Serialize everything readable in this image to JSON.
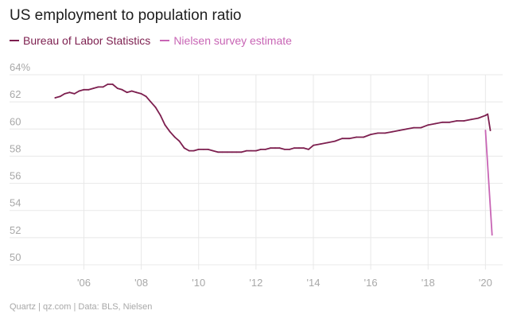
{
  "title": "US employment to population ratio",
  "footer": "Quartz | qz.com | Data: BLS, Nielsen",
  "colors": {
    "bls": "#7d1f4f",
    "nielsen": "#c865b5",
    "grid": "#e8e8e8",
    "tick": "#a8a8a8"
  },
  "chart_data": {
    "type": "line",
    "title": "US employment to population ratio",
    "xlabel": "",
    "ylabel": "",
    "xlim": [
      2004.6,
      2020.6
    ],
    "ylim": [
      50,
      64
    ],
    "grid": true,
    "legend_position": "top-left",
    "y_ticks": [
      {
        "value": 64,
        "label": "64%"
      },
      {
        "value": 62,
        "label": "62"
      },
      {
        "value": 60,
        "label": "60"
      },
      {
        "value": 58,
        "label": "58"
      },
      {
        "value": 56,
        "label": "56"
      },
      {
        "value": 54,
        "label": "54"
      },
      {
        "value": 52,
        "label": "52"
      },
      {
        "value": 50,
        "label": "50"
      }
    ],
    "x_ticks": [
      {
        "value": 2006,
        "label": "'06"
      },
      {
        "value": 2008,
        "label": "'08"
      },
      {
        "value": 2010,
        "label": "'10"
      },
      {
        "value": 2012,
        "label": "'12"
      },
      {
        "value": 2014,
        "label": "'14"
      },
      {
        "value": 2016,
        "label": "'16"
      },
      {
        "value": 2018,
        "label": "'18"
      },
      {
        "value": 2020,
        "label": "'20"
      }
    ],
    "series": [
      {
        "name": "Bureau of Labor Statistics",
        "color": "#7d1f4f",
        "x": [
          2005.0,
          2005.17,
          2005.33,
          2005.5,
          2005.67,
          2005.83,
          2006.0,
          2006.17,
          2006.33,
          2006.5,
          2006.67,
          2006.83,
          2007.0,
          2007.17,
          2007.33,
          2007.5,
          2007.67,
          2007.83,
          2008.0,
          2008.17,
          2008.33,
          2008.5,
          2008.67,
          2008.83,
          2009.0,
          2009.17,
          2009.33,
          2009.5,
          2009.67,
          2009.83,
          2010.0,
          2010.17,
          2010.33,
          2010.5,
          2010.67,
          2010.83,
          2011.0,
          2011.17,
          2011.33,
          2011.5,
          2011.67,
          2011.83,
          2012.0,
          2012.17,
          2012.33,
          2012.5,
          2012.67,
          2012.83,
          2013.0,
          2013.17,
          2013.33,
          2013.5,
          2013.67,
          2013.83,
          2014.0,
          2014.25,
          2014.5,
          2014.75,
          2015.0,
          2015.25,
          2015.5,
          2015.75,
          2016.0,
          2016.25,
          2016.5,
          2016.75,
          2017.0,
          2017.25,
          2017.5,
          2017.75,
          2018.0,
          2018.25,
          2018.5,
          2018.75,
          2019.0,
          2019.25,
          2019.5,
          2019.75,
          2020.0,
          2020.08,
          2020.17
        ],
        "values": [
          62.3,
          62.4,
          62.6,
          62.7,
          62.6,
          62.8,
          62.9,
          62.9,
          63.0,
          63.1,
          63.1,
          63.3,
          63.3,
          63.0,
          62.9,
          62.7,
          62.8,
          62.7,
          62.6,
          62.4,
          62.0,
          61.6,
          61.0,
          60.3,
          59.8,
          59.4,
          59.1,
          58.6,
          58.4,
          58.4,
          58.5,
          58.5,
          58.5,
          58.4,
          58.3,
          58.3,
          58.3,
          58.3,
          58.3,
          58.3,
          58.4,
          58.4,
          58.4,
          58.5,
          58.5,
          58.6,
          58.6,
          58.6,
          58.5,
          58.5,
          58.6,
          58.6,
          58.6,
          58.5,
          58.8,
          58.9,
          59.0,
          59.1,
          59.3,
          59.3,
          59.4,
          59.4,
          59.6,
          59.7,
          59.7,
          59.8,
          59.9,
          60.0,
          60.1,
          60.1,
          60.3,
          60.4,
          60.5,
          60.5,
          60.6,
          60.6,
          60.7,
          60.8,
          61.0,
          61.1,
          59.9
        ]
      },
      {
        "name": "Nielsen survey estimate",
        "color": "#c865b5",
        "x": [
          2020.0,
          2020.23
        ],
        "values": [
          59.9,
          52.2
        ]
      }
    ]
  }
}
